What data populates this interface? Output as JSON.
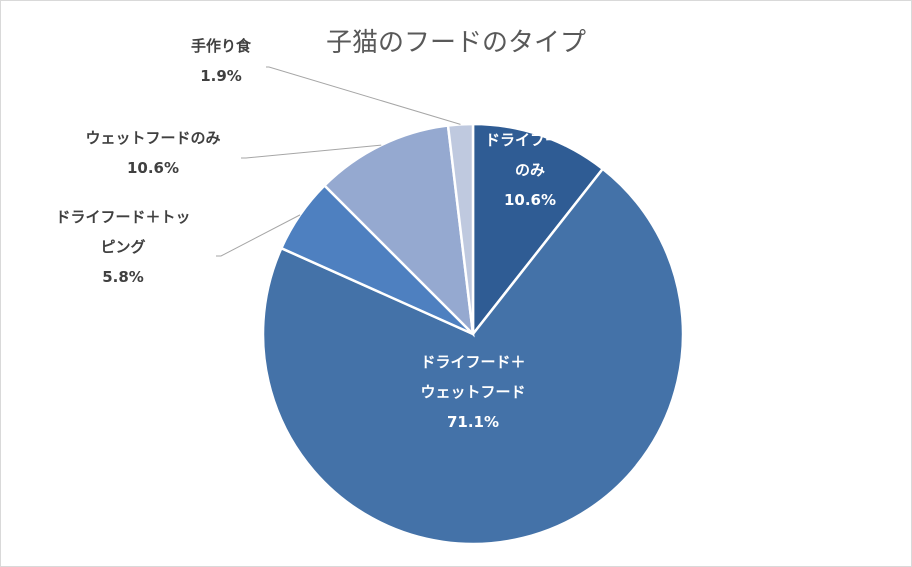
{
  "chart_data": {
    "type": "pie",
    "title": "子猫のフードのタイプ",
    "slices": [
      {
        "name": "ドライフードのみ",
        "label_lines": [
          "ドライフード",
          "のみ"
        ],
        "value": 10.6,
        "value_label": "10.6%",
        "color": "#2f5c94"
      },
      {
        "name": "ドライフード＋ウェットフード",
        "label_lines": [
          "ドライフード＋",
          "ウェットフード"
        ],
        "value": 71.1,
        "value_label": "71.1%",
        "color": "#4472a8"
      },
      {
        "name": "ドライフード＋トッピング",
        "label_lines": [
          "ドライフード＋トッ",
          "ピング"
        ],
        "value": 5.8,
        "value_label": "5.8%",
        "color": "#4e80c0"
      },
      {
        "name": "ウェットフードのみ",
        "label_lines": [
          "ウェットフードのみ"
        ],
        "value": 10.6,
        "value_label": "10.6%",
        "color": "#95a9d0"
      },
      {
        "name": "手作り食",
        "label_lines": [
          "手作り食"
        ],
        "value": 1.9,
        "value_label": "1.9%",
        "color": "#bfc9df"
      }
    ],
    "start_angle_deg": 0,
    "direction": "clockwise",
    "legend": "none"
  }
}
